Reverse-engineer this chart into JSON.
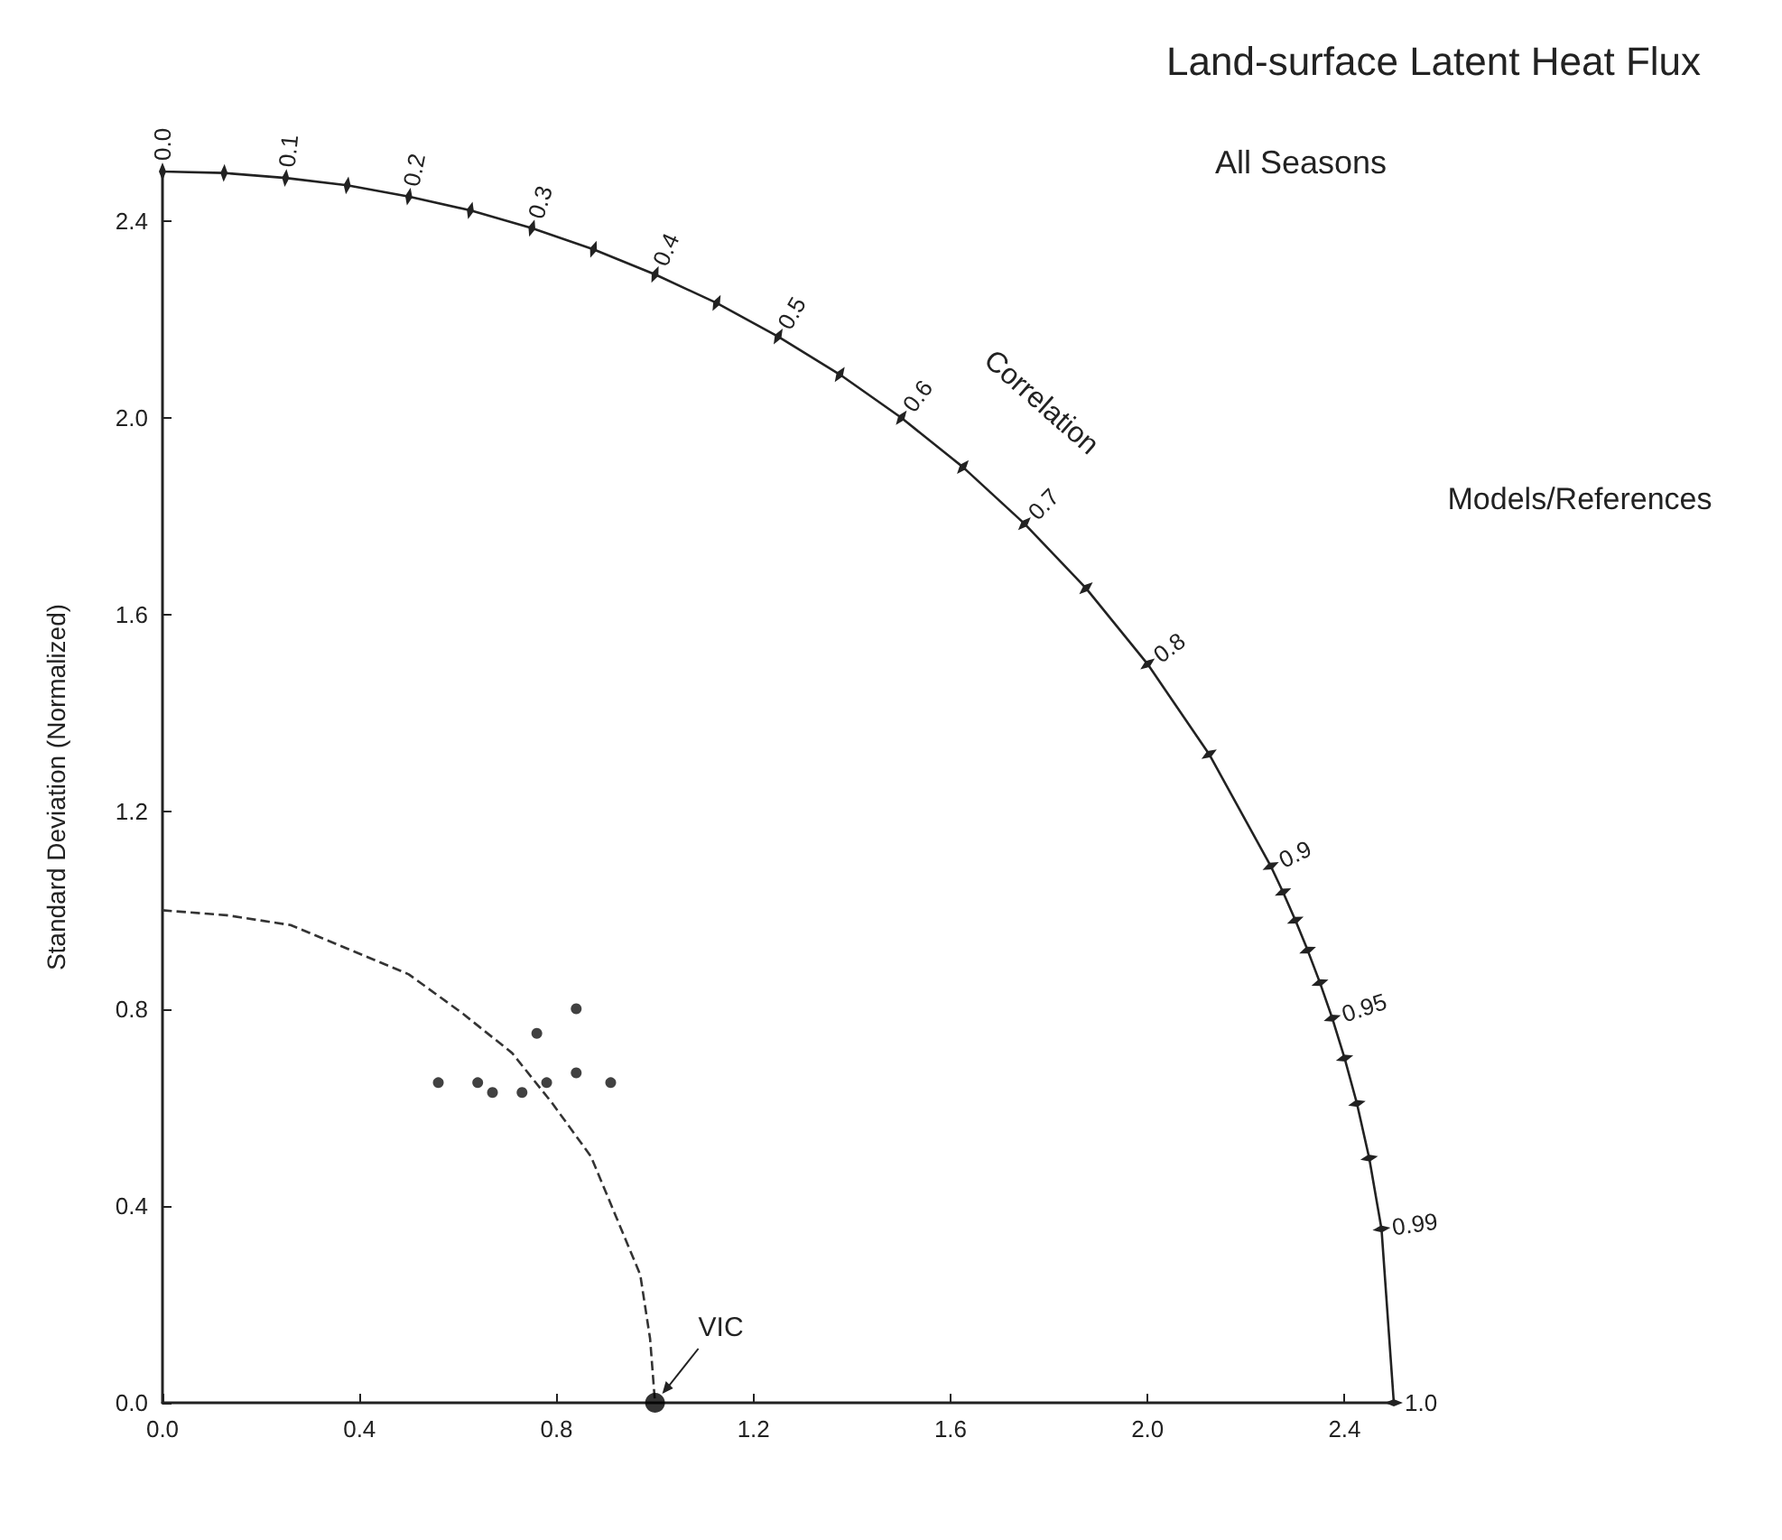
{
  "chart_data": {
    "type": "scatter",
    "title": "Land-surface Latent Heat Flux",
    "subtitle": "All Seasons",
    "ylabel": "Standard Deviation (Normalized)",
    "annotations": [
      "Models/References",
      "Correlation",
      {
        "text": "VIC",
        "x": 1.0,
        "y": 0.0
      },
      {
        "text": "0.0",
        "x": 0,
        "y": 2.5
      },
      {
        "text": "0.1",
        "x": 0.25,
        "y": 2.487
      },
      {
        "text": "0.2",
        "x": 0.5,
        "y": 2.449
      },
      {
        "text": "0.3",
        "x": 0.75,
        "y": 2.385
      },
      {
        "text": "0.4",
        "x": 1.0,
        "y": 2.291
      },
      {
        "text": "0.5",
        "x": 1.25,
        "y": 2.165
      },
      {
        "text": "0.6",
        "x": 1.5,
        "y": 2.0
      },
      {
        "text": "0.7",
        "x": 1.75,
        "y": 1.785
      },
      {
        "text": "0.8",
        "x": 2.0,
        "y": 1.5
      },
      {
        "text": "0.9",
        "x": 2.25,
        "y": 1.09
      },
      {
        "text": "0.95",
        "x": 2.375,
        "y": 0.781
      },
      {
        "text": "0.99",
        "x": 2.475,
        "y": 0.353
      },
      {
        "text": "1.0",
        "x": 2.5,
        "y": 0
      }
    ],
    "xlim": [
      0,
      2.5
    ],
    "ylim": [
      0,
      2.5
    ],
    "xticks": [
      {
        "value": 0,
        "label": "0.0"
      },
      0.4,
      0.8,
      1.2,
      1.6,
      {
        "value": 2,
        "label": "2.0"
      },
      2.4
    ],
    "yticks": [
      {
        "value": 0,
        "label": "0.0"
      },
      0.4,
      0.8,
      1.2,
      1.6,
      {
        "value": 2,
        "label": "2.0"
      },
      2.4
    ],
    "marker": "circle",
    "series": [
      {
        "type": "line",
        "color": "#222222",
        "line_style": "solid",
        "marker": "diamond",
        "x": [
          0,
          0.125,
          0.25,
          0.375,
          0.5,
          0.625,
          0.75,
          0.875,
          1.0,
          1.125,
          1.25,
          1.375,
          1.5,
          1.625,
          1.75,
          1.875,
          2.0,
          2.125,
          2.25,
          2.275,
          2.3,
          2.325,
          2.35,
          2.375,
          2.4,
          2.425,
          2.45,
          2.475,
          2.5
        ],
        "values": [
          2.5,
          2.497,
          2.487,
          2.472,
          2.449,
          2.421,
          2.385,
          2.342,
          2.291,
          2.233,
          2.165,
          2.088,
          2.0,
          1.9,
          1.785,
          1.654,
          1.5,
          1.317,
          1.09,
          1.037,
          0.98,
          0.919,
          0.853,
          0.781,
          0.7,
          0.608,
          0.497,
          0.353,
          0
        ]
      },
      {
        "type": "line",
        "color": "#333333",
        "line_style": "dashed",
        "marker": "none",
        "x": [
          0,
          0.13,
          0.26,
          0.38,
          0.5,
          0.61,
          0.71,
          0.79,
          0.87,
          0.92,
          0.97,
          0.99,
          1.0
        ],
        "values": [
          1.0,
          0.99,
          0.97,
          0.92,
          0.87,
          0.79,
          0.71,
          0.61,
          0.5,
          0.38,
          0.26,
          0.13,
          0
        ]
      },
      {
        "color": "#111111",
        "x": [
          0.76,
          0.84,
          0.56,
          0.64,
          0.67,
          0.73,
          0.78,
          0.84,
          0.91
        ],
        "values": [
          0.75,
          0.8,
          0.65,
          0.65,
          0.63,
          0.63,
          0.65,
          0.67,
          0.65
        ]
      },
      {
        "color": "#000000",
        "x": [
          1.0
        ],
        "values": [
          0.0
        ]
      }
    ]
  }
}
